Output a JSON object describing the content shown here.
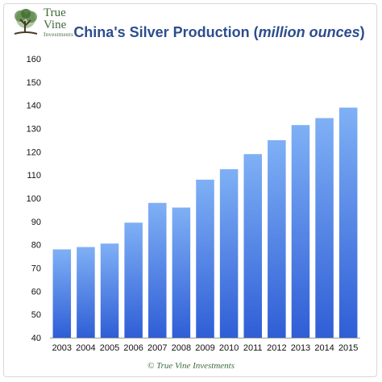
{
  "logo": {
    "line1": "True",
    "line2": "Vine",
    "line3": "Investments"
  },
  "title": {
    "main": "China's Silver Production",
    "unit": "million ounces"
  },
  "footer": "© True Vine Investments",
  "colors": {
    "bar_top": "#7fb0f5",
    "bar_bottom": "#2f5ed6",
    "title": "#2d4d8e",
    "logo_green": "#3e6a3a"
  },
  "chart_data": {
    "type": "bar",
    "title": "China's Silver Production (million ounces)",
    "xlabel": "",
    "ylabel": "",
    "categories": [
      "2003",
      "2004",
      "2005",
      "2006",
      "2007",
      "2008",
      "2009",
      "2010",
      "2011",
      "2012",
      "2013",
      "2014",
      "2015"
    ],
    "values": [
      78,
      79,
      80.5,
      89.5,
      98,
      96,
      108,
      112.5,
      119,
      125,
      131.5,
      134.5,
      139
    ],
    "ylim": [
      40,
      160
    ],
    "yticks": [
      "40",
      "50",
      "60",
      "70",
      "80",
      "90",
      "100",
      "110",
      "120",
      "130",
      "140",
      "150",
      "160"
    ],
    "grid": false,
    "legend": "none"
  }
}
